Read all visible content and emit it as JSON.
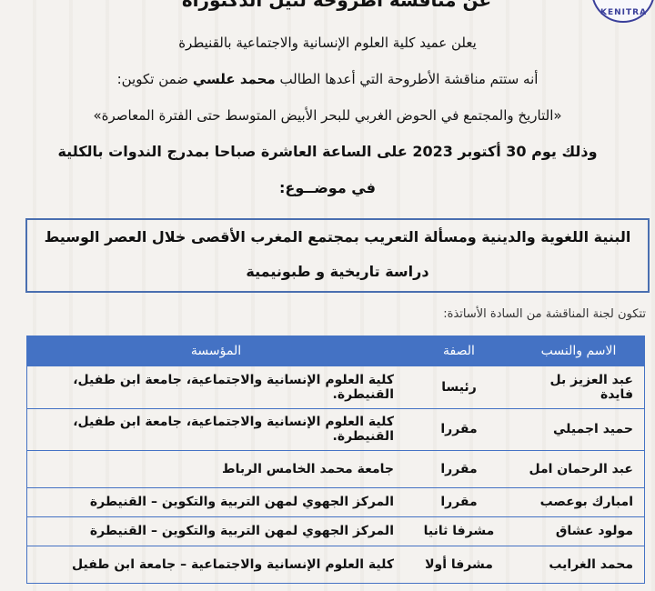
{
  "header": {
    "title": "عن مناقشة أطروحة لنيل الدكتوراه",
    "logo_text": "KENITRA"
  },
  "announcement": {
    "line1": "يعلن عميد كلية العلوم الإنسانية والاجتماعية  بالقنيطرة",
    "line2_pre": "أنه ستتم مناقشة الأطروحة التي أعدها الطالب",
    "student_name": "محمد علسي",
    "line2_post": "ضمن تكوين:",
    "program": "«التاريخ والمجتمع في الحوض الغربي للبحر الأبيض المتوسط حتى الفترة المعاصرة»",
    "date_line": "وذلك يوم 30 أكتوبر 2023 على الساعة العاشرة صباحا بمدرج الندوات بالكلية",
    "subject_label": "في موضــوع:"
  },
  "subject": {
    "line1": "البنية اللغوية والدينية ومسألة التعريب بمجتمع المغرب الأقصى خلال العصر الوسيط",
    "line2": "دراسة تاريخية و طبونيمية"
  },
  "committee": {
    "intro": "تتكون لجنة المناقشة من السادة الأساتذة:",
    "headers": [
      "الاسم والنسب",
      "الصفة",
      "المؤسسة"
    ],
    "rows": [
      {
        "name": "عبد العزيز بل فايدة",
        "role": "رئيسا",
        "institution": "كلية العلوم الإنسانية والاجتماعية، جامعة ابن طفيل، القنيطرة."
      },
      {
        "name": "حميد اجميلي",
        "role": "مقررا",
        "institution": "كلية العلوم الإنسانية والاجتماعية، جامعة ابن طفيل، القنيطرة."
      },
      {
        "name": "عبد الرحمان امل",
        "role": "مقررا",
        "institution": "جامعة محمد الخامس الرباط"
      },
      {
        "name": "امبارك بوعصب",
        "role": "مقررا",
        "institution": "المركز الجهوي لمهن التربية والتكوين – القنيطرة"
      },
      {
        "name": "مولود عشاق",
        "role": "مشرفا ثانيا",
        "institution": "المركز الجهوي لمهن التربية والتكوين – القنيطرة"
      },
      {
        "name": "محمد الغرايب",
        "role": "مشرفا أولا",
        "institution": "كلية العلوم الإنسانية والاجتماعية – جامعة ابن طفيل"
      }
    ]
  },
  "colors": {
    "accent": "#4472c4",
    "box_border": "#4a6fb0"
  }
}
